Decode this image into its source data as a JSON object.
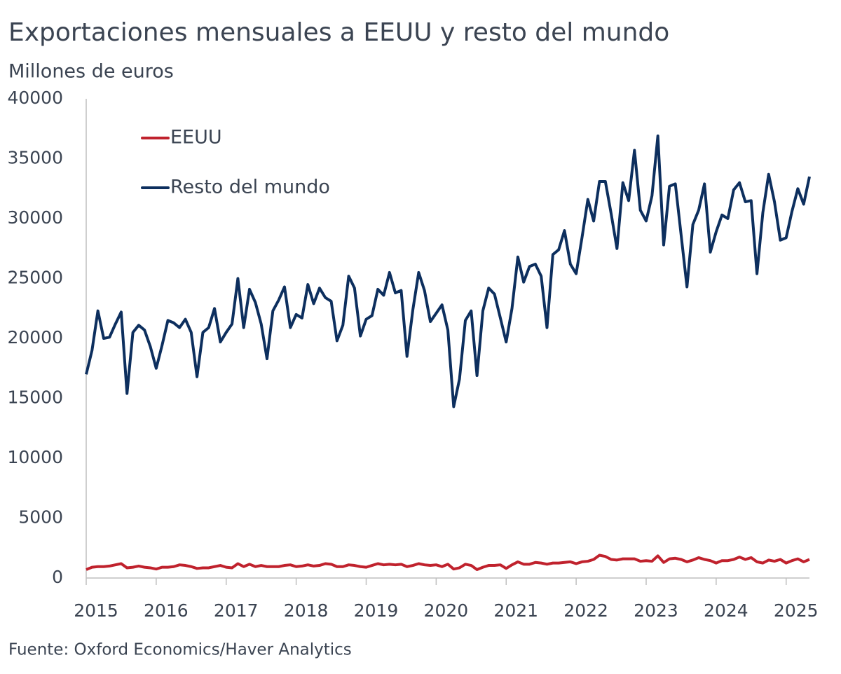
{
  "chart_data": {
    "type": "line",
    "title": "Exportaciones mensuales a EEUU y resto del mundo",
    "subtitle": "Millones de euros",
    "source": "Fuente: Oxford Economics/Haver Analytics",
    "x": [
      2015,
      2015.083,
      2015.167,
      2015.25,
      2015.333,
      2015.417,
      2015.5,
      2015.583,
      2015.667,
      2015.75,
      2015.833,
      2015.917,
      2016,
      2016.083,
      2016.167,
      2016.25,
      2016.333,
      2016.417,
      2016.5,
      2016.583,
      2016.667,
      2016.75,
      2016.833,
      2016.917,
      2017,
      2017.083,
      2017.167,
      2017.25,
      2017.333,
      2017.417,
      2017.5,
      2017.583,
      2017.667,
      2017.75,
      2017.833,
      2017.917,
      2018,
      2018.083,
      2018.167,
      2018.25,
      2018.333,
      2018.417,
      2018.5,
      2018.583,
      2018.667,
      2018.75,
      2018.833,
      2018.917,
      2019,
      2019.083,
      2019.167,
      2019.25,
      2019.333,
      2019.417,
      2019.5,
      2019.583,
      2019.667,
      2019.75,
      2019.833,
      2019.917,
      2020,
      2020.083,
      2020.167,
      2020.25,
      2020.333,
      2020.417,
      2020.5,
      2020.583,
      2020.667,
      2020.75,
      2020.833,
      2020.917,
      2021,
      2021.083,
      2021.167,
      2021.25,
      2021.333,
      2021.417,
      2021.5,
      2021.583,
      2021.667,
      2021.75,
      2021.833,
      2021.917,
      2022,
      2022.083,
      2022.167,
      2022.25,
      2022.333,
      2022.417,
      2022.5,
      2022.583,
      2022.667,
      2022.75,
      2022.833,
      2022.917,
      2023,
      2023.083,
      2023.167,
      2023.25,
      2023.333,
      2023.417,
      2023.5,
      2023.583,
      2023.667,
      2023.75,
      2023.833,
      2023.917,
      2024,
      2024.083,
      2024.167,
      2024.25,
      2024.333,
      2024.417,
      2024.5,
      2024.583,
      2024.667,
      2024.75,
      2024.833,
      2024.917,
      2025,
      2025.083,
      2025.167,
      2025.25,
      2025.333
    ],
    "series": [
      {
        "name": "EEUU",
        "color": "#c0222d",
        "values": [
          700,
          900,
          950,
          950,
          1000,
          1100,
          1200,
          850,
          900,
          1000,
          900,
          850,
          750,
          900,
          900,
          950,
          1100,
          1050,
          950,
          800,
          850,
          850,
          950,
          1050,
          900,
          850,
          1200,
          950,
          1150,
          950,
          1050,
          950,
          950,
          950,
          1050,
          1100,
          950,
          1000,
          1100,
          1000,
          1050,
          1200,
          1150,
          950,
          950,
          1100,
          1050,
          950,
          900,
          1050,
          1200,
          1100,
          1150,
          1100,
          1150,
          950,
          1050,
          1200,
          1100,
          1050,
          1100,
          950,
          1150,
          750,
          850,
          1150,
          1050,
          700,
          900,
          1050,
          1050,
          1100,
          800,
          1100,
          1350,
          1150,
          1150,
          1300,
          1250,
          1150,
          1250,
          1250,
          1300,
          1350,
          1200,
          1350,
          1400,
          1550,
          1900,
          1800,
          1550,
          1500,
          1600,
          1600,
          1600,
          1400,
          1450,
          1400,
          1850,
          1300,
          1600,
          1650,
          1550,
          1350,
          1500,
          1700,
          1550,
          1450,
          1250,
          1450,
          1450,
          1550,
          1750,
          1550,
          1700,
          1350,
          1250,
          1500,
          1400,
          1550,
          1250,
          1450,
          1600,
          1350,
          1550
        ]
      },
      {
        "name": "Resto del mundo",
        "color": "#0d2f5e",
        "values": [
          17000,
          19000,
          22300,
          20000,
          20100,
          21200,
          22200,
          15400,
          20500,
          21100,
          20700,
          19300,
          17500,
          19400,
          21500,
          21300,
          20900,
          21600,
          20500,
          16800,
          20500,
          20900,
          22500,
          19700,
          20500,
          21200,
          25000,
          20900,
          24100,
          23000,
          21200,
          18300,
          22300,
          23200,
          24300,
          20900,
          22000,
          21700,
          24500,
          22900,
          24200,
          23400,
          23100,
          19800,
          21100,
          25200,
          24200,
          20200,
          21600,
          21900,
          24100,
          23600,
          25500,
          23800,
          24000,
          18500,
          22400,
          25500,
          24000,
          21400,
          22100,
          22800,
          20700,
          14300,
          16600,
          21500,
          22300,
          16900,
          22300,
          24200,
          23700,
          21700,
          19700,
          22500,
          26800,
          24700,
          26000,
          26200,
          25200,
          20900,
          27000,
          27400,
          29000,
          26200,
          25400,
          28400,
          31600,
          29800,
          33100,
          33100,
          30400,
          27500,
          33000,
          31500,
          35700,
          30700,
          29800,
          31900,
          36900,
          27800,
          32700,
          32900,
          28600,
          24300,
          29500,
          30700,
          32900,
          27200,
          28900,
          30300,
          30000,
          32400,
          33000,
          31400,
          31500,
          25400,
          30500,
          33700,
          31400,
          28200,
          28400,
          30600,
          32500,
          31200,
          33500
        ]
      }
    ],
    "xlim": [
      2015,
      2025.333
    ],
    "xticks": [
      2015,
      2016,
      2017,
      2018,
      2019,
      2020,
      2021,
      2022,
      2023,
      2024,
      2025
    ],
    "ylim": [
      0,
      40000
    ],
    "yticks": [
      0,
      5000,
      10000,
      15000,
      20000,
      25000,
      30000,
      35000,
      40000
    ],
    "grid": false,
    "legend": "upper left"
  }
}
